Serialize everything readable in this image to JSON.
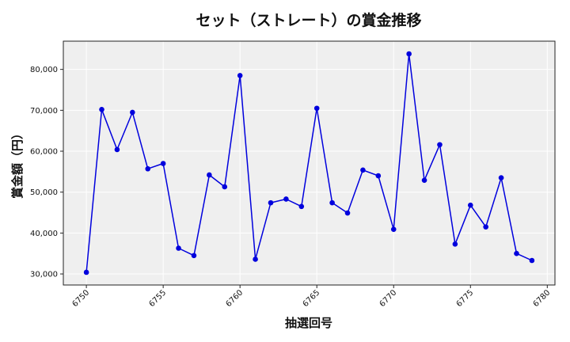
{
  "chart_data": {
    "type": "line",
    "title": "セット（ストレート）の賞金推移",
    "xlabel": "抽選回号",
    "ylabel": "賞金額（円）",
    "x": [
      6750,
      6751,
      6752,
      6753,
      6754,
      6755,
      6756,
      6757,
      6758,
      6759,
      6760,
      6761,
      6762,
      6763,
      6764,
      6765,
      6766,
      6767,
      6768,
      6769,
      6770,
      6771,
      6772,
      6773,
      6774,
      6775,
      6776,
      6777,
      6778,
      6779
    ],
    "series": [
      {
        "values": [
          30400,
          70200,
          60400,
          69500,
          55700,
          57000,
          36300,
          34500,
          54200,
          51300,
          78500,
          33600,
          47400,
          48300,
          46500,
          70500,
          47400,
          44900,
          55400,
          54000,
          40900,
          83800,
          52900,
          61600,
          37300,
          46800,
          41500,
          53500,
          35000,
          33300
        ]
      }
    ],
    "xlim": [
      6748.5,
      6780.5
    ],
    "ylim": [
      27300,
      86900
    ],
    "xticks": [
      6750,
      6755,
      6760,
      6765,
      6770,
      6775,
      6780
    ],
    "xtick_labels": [
      "6750",
      "6755",
      "6760",
      "6765",
      "6770",
      "6775",
      "6780"
    ],
    "yticks": [
      30000,
      40000,
      50000,
      60000,
      70000,
      80000
    ],
    "ytick_labels": [
      "30,000",
      "40,000",
      "50,000",
      "60,000",
      "70,000",
      "80,000"
    ],
    "grid": true,
    "line_color": "#0000dd",
    "marker_color": "#0000dd",
    "plot_background": "#efefef",
    "grid_color": "#ffffff"
  }
}
